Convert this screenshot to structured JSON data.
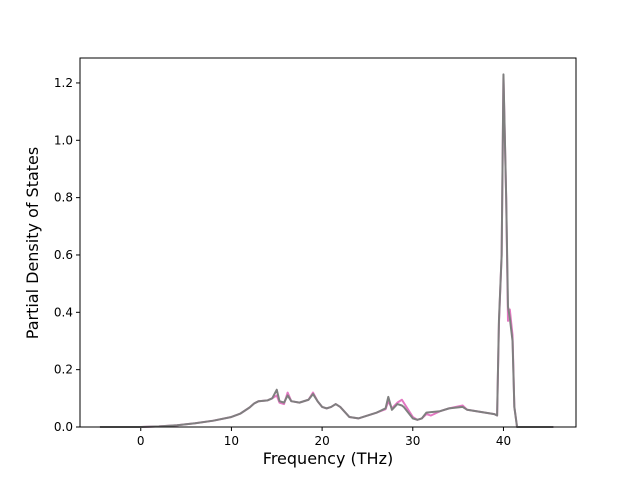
{
  "chart_data": {
    "type": "line",
    "xlabel": "Frequency (THz)",
    "ylabel": "Partial Density of States",
    "x": [
      -4.5,
      0,
      2,
      4,
      6,
      8,
      10,
      11,
      12,
      12.5,
      13,
      14,
      14.5,
      15,
      15.3,
      15.8,
      16.2,
      16.6,
      17.5,
      18.5,
      19,
      19.5,
      20,
      20.5,
      21,
      21.5,
      22,
      23,
      24,
      25,
      26,
      27,
      27.3,
      27.7,
      28.3,
      28.8,
      29,
      30,
      30.5,
      31,
      31.5,
      32,
      33,
      34,
      35.5,
      36,
      39,
      39.3,
      39.5,
      39.8,
      40,
      40.3,
      40.5,
      40.7,
      41,
      41.2,
      41.5,
      45.5
    ],
    "series": [
      {
        "color": "#e377c2",
        "values": [
          0,
          0,
          0.002,
          0.006,
          0.013,
          0.022,
          0.035,
          0.047,
          0.068,
          0.082,
          0.09,
          0.093,
          0.1,
          0.11,
          0.085,
          0.08,
          0.12,
          0.09,
          0.085,
          0.095,
          0.12,
          0.09,
          0.07,
          0.065,
          0.07,
          0.08,
          0.07,
          0.035,
          0.03,
          0.04,
          0.05,
          0.062,
          0.09,
          0.065,
          0.085,
          0.095,
          0.085,
          0.035,
          0.025,
          0.03,
          0.045,
          0.04,
          0.055,
          0.065,
          0.075,
          0.06,
          0.045,
          0.04,
          0.36,
          0.6,
          1.22,
          0.8,
          0.37,
          0.41,
          0.32,
          0.07,
          0,
          0
        ]
      },
      {
        "color": "#7f7f7f",
        "values": [
          0,
          0,
          0.002,
          0.006,
          0.013,
          0.022,
          0.035,
          0.047,
          0.068,
          0.082,
          0.09,
          0.093,
          0.1,
          0.13,
          0.09,
          0.085,
          0.11,
          0.09,
          0.085,
          0.095,
          0.115,
          0.09,
          0.07,
          0.065,
          0.07,
          0.08,
          0.07,
          0.035,
          0.03,
          0.04,
          0.05,
          0.065,
          0.105,
          0.06,
          0.08,
          0.075,
          0.07,
          0.03,
          0.025,
          0.03,
          0.05,
          0.052,
          0.055,
          0.065,
          0.07,
          0.06,
          0.045,
          0.04,
          0.37,
          0.6,
          1.23,
          0.8,
          0.42,
          0.38,
          0.3,
          0.07,
          0,
          0
        ]
      }
    ],
    "xlim": [
      -6.7,
      48.0
    ],
    "ylim": [
      0,
      1.287
    ],
    "xticks": [
      0,
      10,
      20,
      30,
      40
    ],
    "yticks": [
      {
        "value": 0,
        "label": "0.0"
      },
      0.2,
      0.4,
      0.6,
      0.8,
      {
        "value": 1,
        "label": "1.0"
      },
      1.2
    ],
    "grid": false
  }
}
